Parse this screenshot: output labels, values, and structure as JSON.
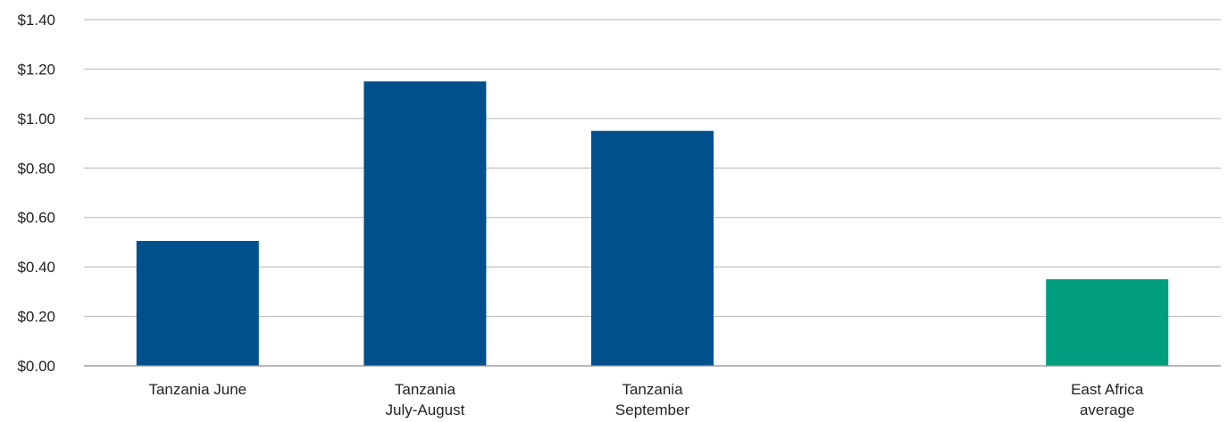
{
  "chart_data": {
    "type": "bar",
    "categories": [
      [
        "Tanzania June"
      ],
      [
        "Tanzania",
        "July-August"
      ],
      [
        "Tanzania",
        "September"
      ],
      [
        ""
      ],
      [
        "East Africa",
        "average"
      ]
    ],
    "values": [
      0.505,
      1.15,
      0.95,
      null,
      0.35
    ],
    "bar_colors": [
      "#00508c",
      "#00508c",
      "#00508c",
      null,
      "#009e7e"
    ],
    "yticks": [
      0,
      0.2,
      0.4,
      0.6,
      0.8,
      1.0,
      1.2,
      1.4
    ],
    "ytick_labels": [
      "$0.00",
      "$0.20",
      "$0.40",
      "$0.60",
      "$0.80",
      "$1.00",
      "$1.20",
      "$1.40"
    ],
    "ylim": [
      0,
      1.4
    ],
    "grid": true,
    "legend": "none",
    "title": "",
    "xlabel": "",
    "ylabel": ""
  }
}
